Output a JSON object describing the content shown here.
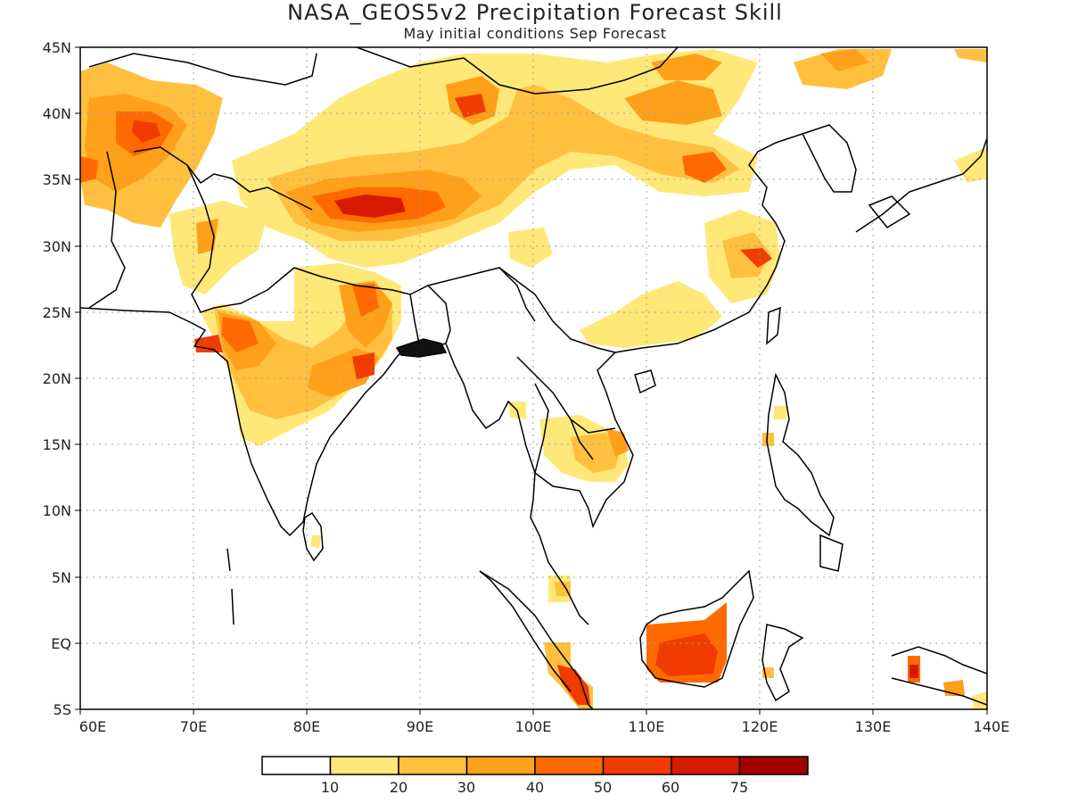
{
  "title": "NASA_GEOS5v2 Precipitation Forecast Skill",
  "subtitle": "May initial conditions  Sep Forecast",
  "lat_labels": [
    "45N",
    "40N",
    "35N",
    "30N",
    "25N",
    "20N",
    "15N",
    "10N",
    "5N",
    "EQ",
    "5S"
  ],
  "lon_labels": [
    "60E",
    "70E",
    "80E",
    "90E",
    "100E",
    "110E",
    "120E",
    "130E",
    "140E"
  ],
  "colorbar": {
    "labels": [
      "10",
      "20",
      "30",
      "40",
      "50",
      "60",
      "75"
    ],
    "colors": [
      "#ffffff",
      "#ffe878",
      "#ffc040",
      "#ffa01a",
      "#ff6a00",
      "#f03c00",
      "#d81a00",
      "#a00000"
    ]
  },
  "colors": {
    "coast": "#000000",
    "grid": "#a0a0a0"
  }
}
